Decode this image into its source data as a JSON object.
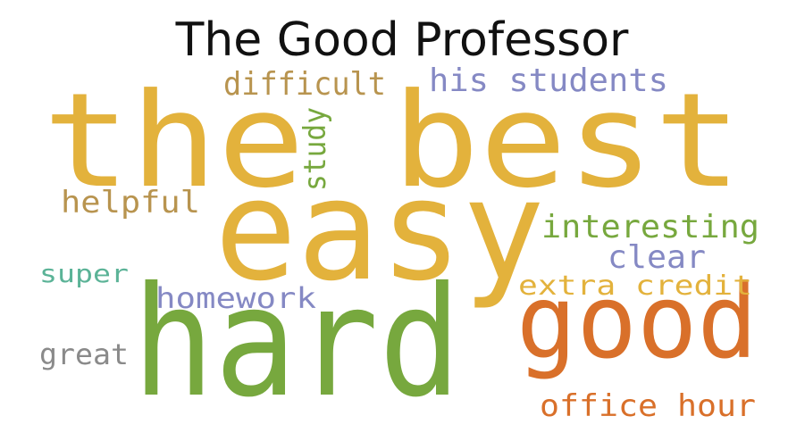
{
  "title": "The Good Professor",
  "words": [
    {
      "text": "the best",
      "color": "#E3B23C"
    },
    {
      "text": "easy",
      "color": "#E3B23C"
    },
    {
      "text": "hard",
      "color": "#77A83E"
    },
    {
      "text": "good",
      "color": "#D9702A"
    },
    {
      "text": "difficult",
      "color": "#B8944F"
    },
    {
      "text": "his students",
      "color": "#8589C4"
    },
    {
      "text": "study",
      "color": "#77A83E"
    },
    {
      "text": "helpful",
      "color": "#B8944F"
    },
    {
      "text": "interesting",
      "color": "#77A83E"
    },
    {
      "text": "clear",
      "color": "#8589C4"
    },
    {
      "text": "super",
      "color": "#5BB397"
    },
    {
      "text": "extra credit",
      "color": "#E3B23C"
    },
    {
      "text": "homework",
      "color": "#8589C4"
    },
    {
      "text": "great",
      "color": "#8A8A8A"
    },
    {
      "text": "office hour",
      "color": "#D9702A"
    }
  ]
}
